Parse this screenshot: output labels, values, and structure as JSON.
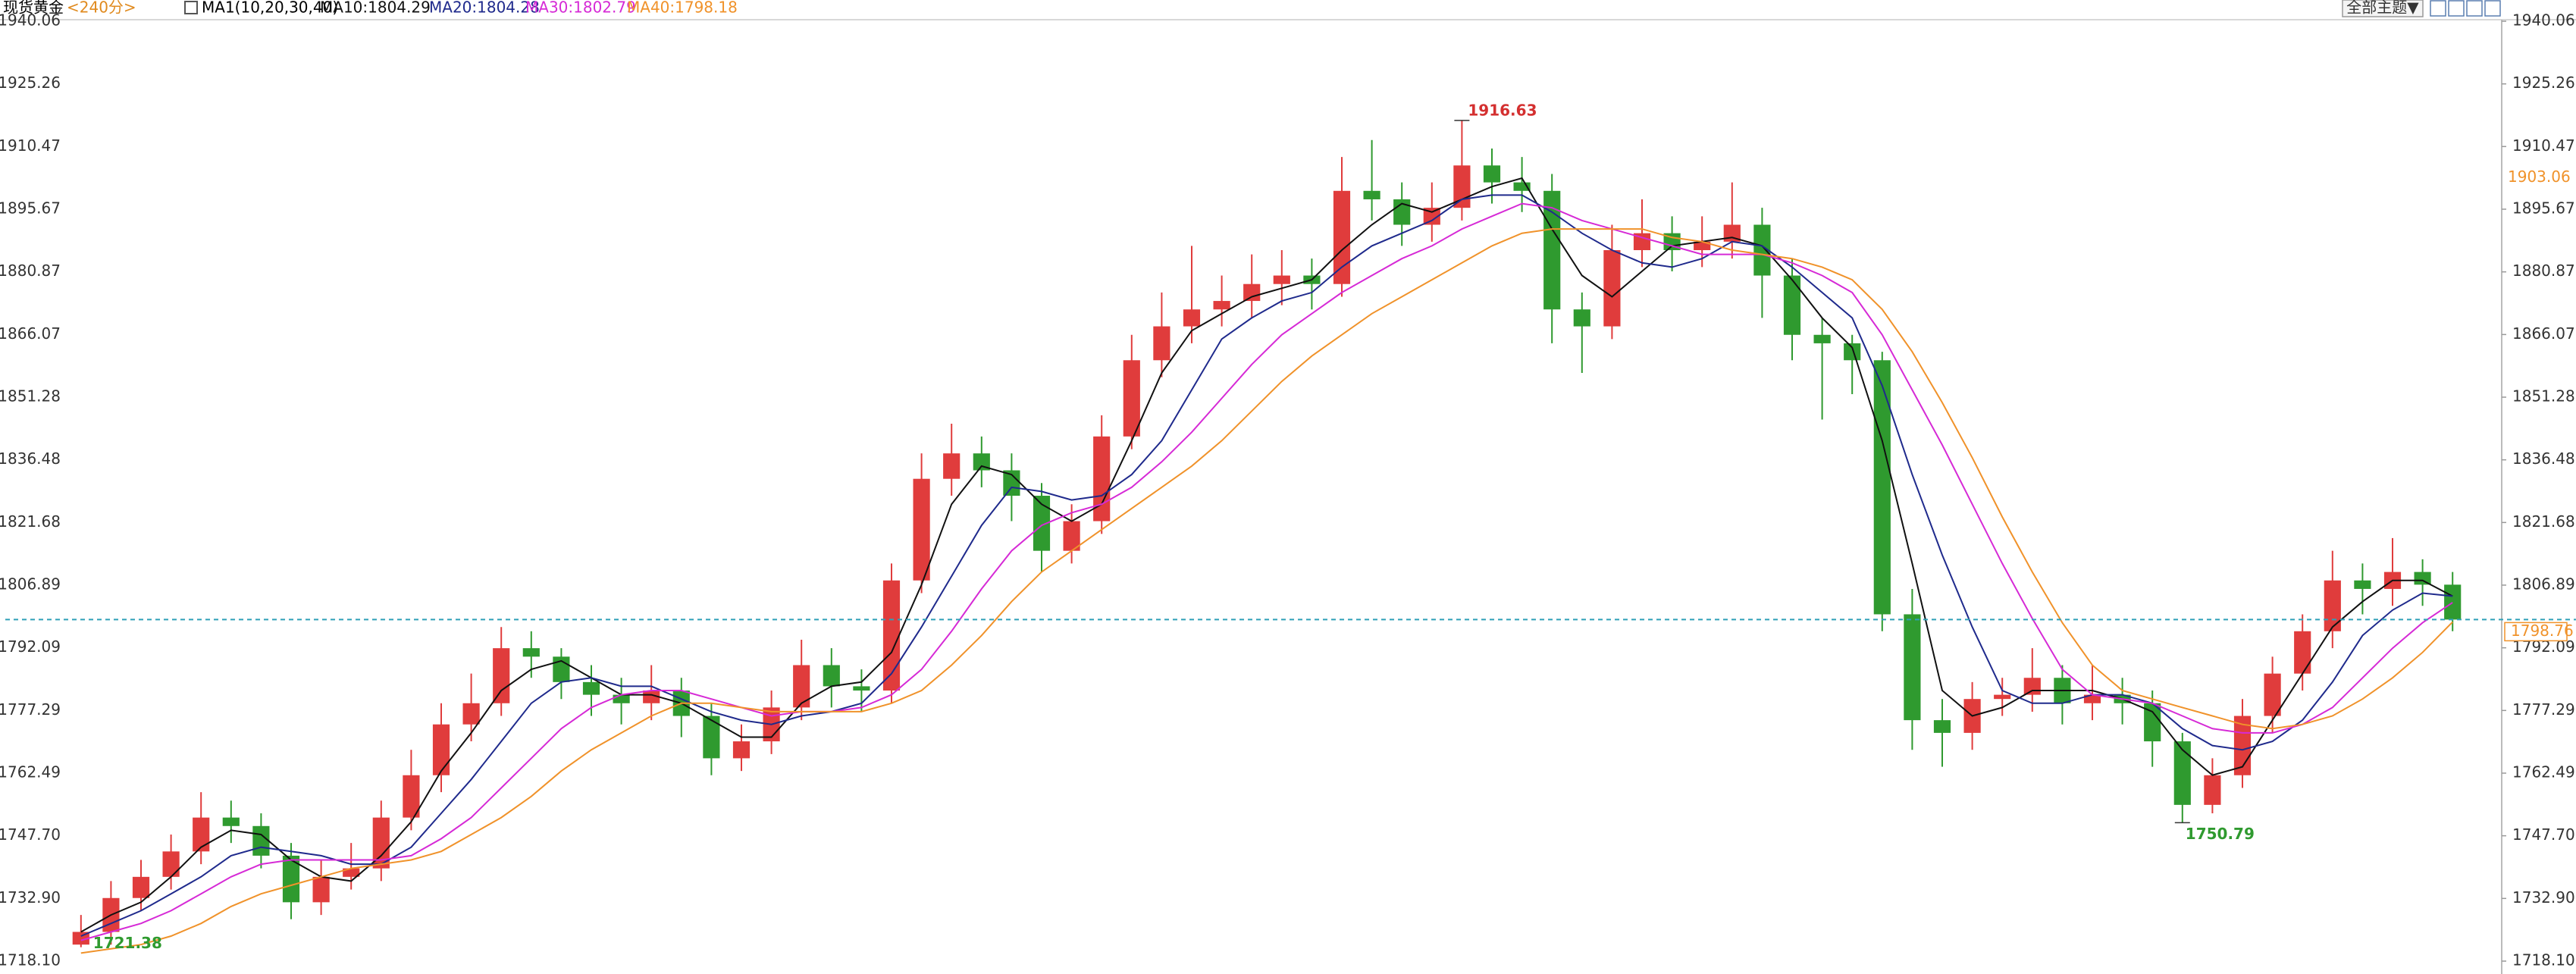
{
  "chart_data": {
    "type": "candlestick",
    "period": "<240分>",
    "indicator": "MA1(10,20,30,40)",
    "theme_button": "全部主题▼",
    "up_color": "#e03c3c",
    "down_color": "#2f9a2f",
    "ylim": [
      1718.1,
      1940.06
    ],
    "yticks": [
      1940.06,
      1925.26,
      1910.47,
      1895.67,
      1880.87,
      1866.07,
      1851.28,
      1836.48,
      1821.68,
      1806.89,
      1792.09,
      1777.29,
      1762.49,
      {
        "value": 1747.7,
        "label": "1747.70"
      },
      {
        "value": 1732.9,
        "label": "1732.90"
      },
      {
        "value": 1718.1,
        "label": "1718.10"
      }
    ],
    "price_marker": 1903.06,
    "series": [
      {
        "name": "现货黄金",
        "open": [
          1722,
          1725,
          1733,
          1738,
          1744,
          1752,
          1750,
          1743,
          1732,
          1738,
          1740,
          1752,
          1762,
          1774,
          1779,
          1792,
          1790,
          1784,
          1781,
          1779,
          1782,
          1776,
          1766,
          1770,
          1778,
          1788,
          1783,
          1782,
          1808,
          1832,
          1838,
          1834,
          1828,
          1815,
          1822,
          1842,
          1860,
          1868,
          1872,
          1874,
          1878,
          1880,
          1878,
          1900,
          1898,
          1892,
          1896,
          1906,
          1902,
          1900,
          1872,
          1868,
          1886,
          1890,
          1886,
          1888,
          1892,
          1880,
          1866,
          1864,
          1860,
          1800,
          1775,
          1772,
          1780,
          1781,
          1785,
          1779,
          1781,
          1779,
          1770,
          1755,
          1762,
          1776,
          1786,
          1796,
          1808,
          1806,
          1810,
          1807
        ],
        "high": [
          1729,
          1737,
          1742,
          1748,
          1758,
          1756,
          1753,
          1746,
          1742,
          1746,
          1756,
          1768,
          1779,
          1786,
          1797,
          1796,
          1792,
          1788,
          1785,
          1788,
          1785,
          1779,
          1774,
          1782,
          1794,
          1792,
          1787,
          1812,
          1838,
          1845,
          1842,
          1838,
          1831,
          1826,
          1847,
          1866,
          1876,
          1887,
          1880,
          1885,
          1886,
          1884,
          1908,
          1912,
          1902,
          1902,
          1916.63,
          1910,
          1908,
          1904,
          1876,
          1892,
          1898,
          1894,
          1894,
          1902,
          1896,
          1884,
          1870,
          1866,
          1862,
          1806,
          1780,
          1784,
          1785,
          1792,
          1788,
          1788,
          1785,
          1782,
          1772,
          1766,
          1780,
          1790,
          1800,
          1815,
          1812,
          1818,
          1813,
          1810
        ],
        "low": [
          1721.38,
          1722,
          1730,
          1735,
          1741,
          1746,
          1740,
          1728,
          1729,
          1735,
          1737,
          1749,
          1758,
          1770,
          1776,
          1785,
          1780,
          1776,
          1774,
          1775,
          1771,
          1762,
          1763,
          1767,
          1775,
          1778,
          1777,
          1779,
          1805,
          1828,
          1830,
          1822,
          1810,
          1812,
          1819,
          1839,
          1856,
          1864,
          1868,
          1870,
          1873,
          1872,
          1875,
          1893,
          1887,
          1888,
          1893,
          1897,
          1895,
          1864,
          1857,
          1865,
          1882,
          1881,
          1882,
          1884,
          1870,
          1860,
          1846,
          1852,
          1796,
          1768,
          1764,
          1768,
          1776,
          1777,
          1774,
          1775,
          1774,
          1764,
          1750.79,
          1753,
          1759,
          1772,
          1782,
          1792,
          1800,
          1802,
          1802,
          1796
        ],
        "close": [
          1725,
          1733,
          1738,
          1744,
          1752,
          1750,
          1743,
          1732,
          1738,
          1740,
          1752,
          1762,
          1774,
          1779,
          1792,
          1790,
          1784,
          1781,
          1779,
          1782,
          1776,
          1766,
          1770,
          1778,
          1788,
          1783,
          1782,
          1808,
          1832,
          1838,
          1834,
          1828,
          1815,
          1822,
          1842,
          1860,
          1868,
          1872,
          1874,
          1878,
          1880,
          1878,
          1900,
          1898,
          1892,
          1896,
          1906,
          1902,
          1900,
          1872,
          1868,
          1886,
          1890,
          1886,
          1888,
          1892,
          1880,
          1866,
          1864,
          1860,
          1800,
          1775,
          1772,
          1780,
          1781,
          1785,
          1779,
          1781,
          1779,
          1770,
          1755,
          1762,
          1776,
          1786,
          1796,
          1808,
          1806,
          1810,
          1807,
          1798.76
        ]
      },
      {
        "name": "MA10:1804.29",
        "color": "#111111",
        "values": [
          1725,
          1729,
          1732,
          1738,
          1745,
          1749,
          1748,
          1742,
          1738,
          1737,
          1743,
          1751,
          1763,
          1772,
          1782,
          1787,
          1789,
          1785,
          1781,
          1781,
          1779,
          1775,
          1771,
          1771,
          1779,
          1783,
          1784,
          1791,
          1807,
          1826,
          1835,
          1833,
          1826,
          1822,
          1826,
          1841,
          1857,
          1867,
          1871,
          1875,
          1877,
          1879,
          1886,
          1892,
          1897,
          1895,
          1898,
          1901,
          1903,
          1891,
          1880,
          1875,
          1881,
          1887,
          1888,
          1889,
          1887,
          1879,
          1870,
          1863,
          1841,
          1812,
          1782,
          1776,
          1778,
          1782,
          1782,
          1782,
          1780,
          1777,
          1768,
          1762,
          1764,
          1775,
          1786,
          1797,
          1803,
          1808,
          1808,
          1804.29
        ]
      },
      {
        "name": "MA20:1804.28",
        "color": "#1f2a8c",
        "values": [
          1724,
          1727,
          1730,
          1734,
          1738,
          1743,
          1745,
          1744,
          1743,
          1741,
          1741,
          1745,
          1753,
          1761,
          1770,
          1779,
          1784,
          1785,
          1783,
          1783,
          1780,
          1777,
          1775,
          1774,
          1776,
          1777,
          1779,
          1786,
          1797,
          1809,
          1821,
          1830,
          1829,
          1827,
          1828,
          1833,
          1841,
          1853,
          1865,
          1870,
          1874,
          1876,
          1882,
          1887,
          1890,
          1893,
          1898,
          1899,
          1899,
          1895,
          1890,
          1886,
          1883,
          1882,
          1884,
          1888,
          1887,
          1882,
          1876,
          1870,
          1854,
          1833,
          1814,
          1797,
          1782,
          1779,
          1779,
          1781,
          1781,
          1779,
          1773,
          1769,
          1768,
          1770,
          1775,
          1784,
          1795,
          1801,
          1805,
          1804.28
        ]
      },
      {
        "name": "MA30:1802.79",
        "color": "#d62ad6",
        "values": [
          1723,
          1725,
          1727,
          1730,
          1734,
          1738,
          1741,
          1742,
          1742,
          1742,
          1742,
          1743,
          1747,
          1752,
          1759,
          1766,
          1773,
          1778,
          1781,
          1782,
          1782,
          1780,
          1778,
          1776,
          1777,
          1777,
          1778,
          1781,
          1787,
          1796,
          1806,
          1815,
          1821,
          1824,
          1826,
          1830,
          1836,
          1843,
          1851,
          1859,
          1866,
          1871,
          1876,
          1880,
          1884,
          1887,
          1891,
          1894,
          1897,
          1896,
          1893,
          1891,
          1889,
          1887,
          1885,
          1885,
          1885,
          1883,
          1880,
          1876,
          1866,
          1853,
          1840,
          1826,
          1812,
          1799,
          1787,
          1781,
          1780,
          1779,
          1776,
          1773,
          1772,
          1772,
          1774,
          1778,
          1785,
          1792,
          1798,
          1802.79
        ]
      },
      {
        "name": "MA40:1798.18",
        "color": "#f0922a",
        "values": [
          1720,
          1721,
          1722,
          1724,
          1727,
          1731,
          1734,
          1736,
          1738,
          1740,
          1741,
          1742,
          1744,
          1748,
          1752,
          1757,
          1763,
          1768,
          1772,
          1776,
          1779,
          1779,
          1778,
          1777,
          1777,
          1777,
          1777,
          1779,
          1782,
          1788,
          1795,
          1803,
          1810,
          1815,
          1820,
          1825,
          1830,
          1835,
          1841,
          1848,
          1855,
          1861,
          1866,
          1871,
          1875,
          1879,
          1883,
          1887,
          1890,
          1891,
          1891,
          1891,
          1891,
          1889,
          1888,
          1886,
          1885,
          1884,
          1882,
          1879,
          1872,
          1862,
          1850,
          1837,
          1823,
          1810,
          1798,
          1788,
          1782,
          1780,
          1778,
          1776,
          1774,
          1773,
          1774,
          1776,
          1780,
          1785,
          1791,
          1798.18
        ]
      }
    ]
  }
}
